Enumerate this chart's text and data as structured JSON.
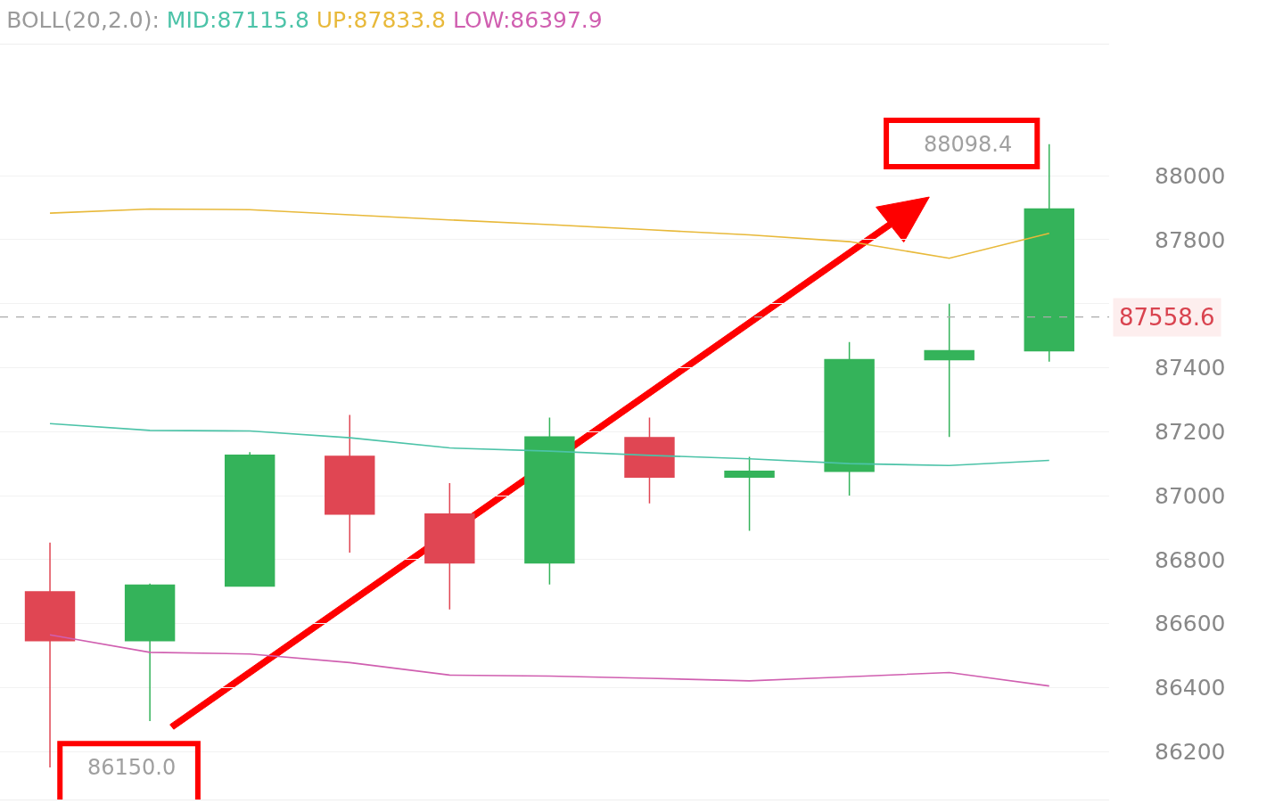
{
  "chart_data": {
    "type": "candlestick",
    "title": "BOLL(20,2.0):",
    "categories": [
      null,
      null,
      null,
      null,
      null,
      null,
      null,
      null,
      null,
      null,
      null
    ],
    "ohlc": [
      [
        86699,
        86853,
        86150,
        86547
      ],
      [
        86547,
        86725,
        86295,
        86720
      ],
      [
        86717,
        87136,
        86717,
        87126
      ],
      [
        87123,
        87252,
        86822,
        86942
      ],
      [
        86942,
        87039,
        86644,
        86790
      ],
      [
        86790,
        87244,
        86722,
        87183
      ],
      [
        87181,
        87244,
        86976,
        87058
      ],
      [
        87058,
        87121,
        86890,
        87076
      ],
      [
        87076,
        87480,
        87000,
        87425
      ],
      [
        87425,
        87600,
        87183,
        87453
      ],
      [
        87453,
        88098.4,
        87419,
        87896
      ]
    ],
    "colors": [
      "#e04653",
      "#34b35a",
      "#34b35a",
      "#e04653",
      "#e04653",
      "#34b35a",
      "#e04653",
      "#34b35a",
      "#34b35a",
      "#34b35a",
      "#34b35a"
    ],
    "series": [
      {
        "name": "MID:87115.8",
        "type": "line",
        "color": "#4cc3a8",
        "values": [
          87225,
          87204,
          87202,
          87181,
          87149,
          87139,
          87126,
          87115,
          87100,
          87094,
          87110
        ]
      },
      {
        "name": "UP:87833.8",
        "type": "line",
        "color": "#e8b93a",
        "values": [
          87883,
          87896,
          87894,
          87878,
          87862,
          87847,
          87831,
          87815,
          87794,
          87742,
          87820
        ]
      },
      {
        "name": "LOW:86397.9",
        "type": "line",
        "color": "#d05fb0",
        "values": [
          86565,
          86510,
          86505,
          86478,
          86439,
          86436,
          86429,
          86421,
          86434,
          86447,
          86405
        ]
      }
    ],
    "ylim": [
      86050,
      88410
    ],
    "yticks": [
      86200,
      86400,
      86600,
      86800,
      87000,
      87200,
      87400,
      {
        "value": 87600,
        "label": null
      },
      87800,
      88000
    ],
    "ref_lines": [
      {
        "axis": "y",
        "value": 87558.6,
        "label": "87558.6",
        "color": "#aaaaaa",
        "line_style": "dashed"
      }
    ],
    "annotations": [
      "88098.4",
      "86150.0"
    ],
    "grid": "y",
    "tick_labels": "y"
  }
}
